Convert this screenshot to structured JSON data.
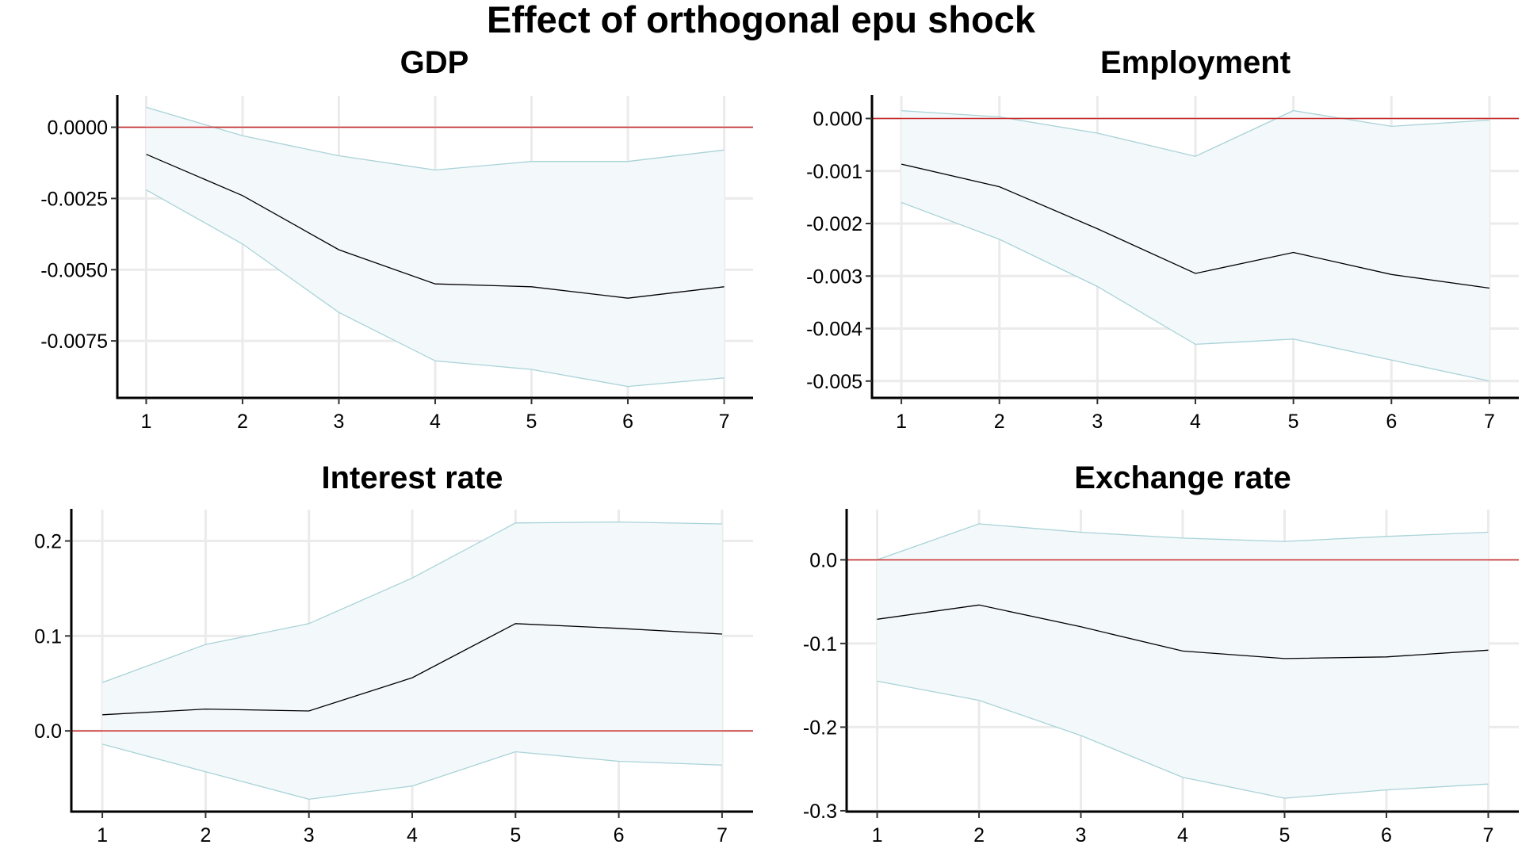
{
  "title": "Effect of orthogonal epu shock",
  "chart_data": [
    {
      "type": "line",
      "title": "GDP",
      "x": [
        1,
        2,
        3,
        4,
        5,
        6,
        7
      ],
      "xticks": [
        "1",
        "2",
        "3",
        "4",
        "5",
        "6",
        "7"
      ],
      "yticks": [
        "0.0000",
        "-0.0025",
        "-0.0050",
        "-0.0075"
      ],
      "ytick_values": [
        0,
        -0.0025,
        -0.005,
        -0.0075
      ],
      "xlim": [
        0.7,
        7.3
      ],
      "ylim": [
        -0.0095,
        0.0011
      ],
      "zero_line": 0,
      "series": [
        {
          "role": "lower",
          "values": [
            -0.0022,
            -0.0041,
            -0.0065,
            -0.0082,
            -0.0085,
            -0.0091,
            -0.0088
          ]
        },
        {
          "role": "estimate",
          "values": [
            -0.00095,
            -0.0024,
            -0.0043,
            -0.0055,
            -0.0056,
            -0.006,
            -0.0056
          ]
        },
        {
          "role": "upper",
          "values": [
            0.0007,
            -0.0003,
            -0.001,
            -0.0015,
            -0.0012,
            -0.0012,
            -0.0008
          ]
        }
      ],
      "grid": true,
      "colors": {
        "band": "#f3f8fa",
        "band_edge": "#a9d3d8",
        "line": "#000000",
        "zero": "#cc2a2a"
      }
    },
    {
      "type": "line",
      "title": "Employment",
      "x": [
        1,
        2,
        3,
        4,
        5,
        6,
        7
      ],
      "xticks": [
        "1",
        "2",
        "3",
        "4",
        "5",
        "6",
        "7"
      ],
      "yticks": [
        "0.000",
        "-0.001",
        "-0.002",
        "-0.003",
        "-0.004",
        "-0.005"
      ],
      "ytick_values": [
        0,
        -0.001,
        -0.002,
        -0.003,
        -0.004,
        -0.005
      ],
      "xlim": [
        0.7,
        7.3
      ],
      "ylim": [
        -0.00532,
        0.00043
      ],
      "zero_line": 0,
      "series": [
        {
          "role": "lower",
          "values": [
            -0.0016,
            -0.0023,
            -0.0032,
            -0.0043,
            -0.0042,
            -0.0046,
            -0.005
          ]
        },
        {
          "role": "estimate",
          "values": [
            -0.00087,
            -0.0013,
            -0.0021,
            -0.00295,
            -0.00255,
            -0.00297,
            -0.00323
          ]
        },
        {
          "role": "upper",
          "values": [
            0.00015,
            3e-05,
            -0.00028,
            -0.00072,
            0.00015,
            -0.00015,
            -3e-05
          ]
        }
      ],
      "grid": true,
      "colors": {
        "band": "#f3f8fa",
        "band_edge": "#a9d3d8",
        "line": "#000000",
        "zero": "#cc2a2a"
      }
    },
    {
      "type": "line",
      "title": "Interest rate",
      "x": [
        1,
        2,
        3,
        4,
        5,
        6,
        7
      ],
      "xticks": [
        "1",
        "2",
        "3",
        "4",
        "5",
        "6",
        "7"
      ],
      "yticks": [
        "0.2",
        "0.1",
        "0.0"
      ],
      "ytick_values": [
        0.2,
        0.1,
        0
      ],
      "xlim": [
        0.7,
        7.3
      ],
      "ylim": [
        -0.085,
        0.233
      ],
      "zero_line": 0,
      "series": [
        {
          "role": "lower",
          "values": [
            -0.014,
            -0.043,
            -0.072,
            -0.058,
            -0.022,
            -0.032,
            -0.036
          ]
        },
        {
          "role": "estimate",
          "values": [
            0.017,
            0.023,
            0.021,
            0.056,
            0.113,
            0.108,
            0.102
          ]
        },
        {
          "role": "upper",
          "values": [
            0.051,
            0.091,
            0.113,
            0.161,
            0.219,
            0.22,
            0.218
          ]
        }
      ],
      "grid": true,
      "colors": {
        "band": "#f3f8fa",
        "band_edge": "#a9d3d8",
        "line": "#000000",
        "zero": "#cc2a2a"
      }
    },
    {
      "type": "line",
      "title": "Exchange rate",
      "x": [
        1,
        2,
        3,
        4,
        5,
        6,
        7
      ],
      "xticks": [
        "1",
        "2",
        "3",
        "4",
        "5",
        "6",
        "7"
      ],
      "yticks": [
        "0.0",
        "-0.1",
        "-0.2",
        "-0.3"
      ],
      "ytick_values": [
        0,
        -0.1,
        -0.2,
        -0.3
      ],
      "xlim": [
        0.7,
        7.3
      ],
      "ylim": [
        -0.301,
        0.06
      ],
      "zero_line": 0,
      "series": [
        {
          "role": "lower",
          "values": [
            -0.145,
            -0.168,
            -0.21,
            -0.26,
            -0.285,
            -0.275,
            -0.268
          ]
        },
        {
          "role": "estimate",
          "values": [
            -0.071,
            -0.054,
            -0.08,
            -0.109,
            -0.118,
            -0.116,
            -0.108
          ]
        },
        {
          "role": "upper",
          "values": [
            0.0,
            0.043,
            0.033,
            0.026,
            0.022,
            0.028,
            0.033
          ]
        }
      ],
      "grid": true,
      "colors": {
        "band": "#f3f8fa",
        "band_edge": "#a9d3d8",
        "line": "#000000",
        "zero": "#cc2a2a"
      }
    }
  ]
}
